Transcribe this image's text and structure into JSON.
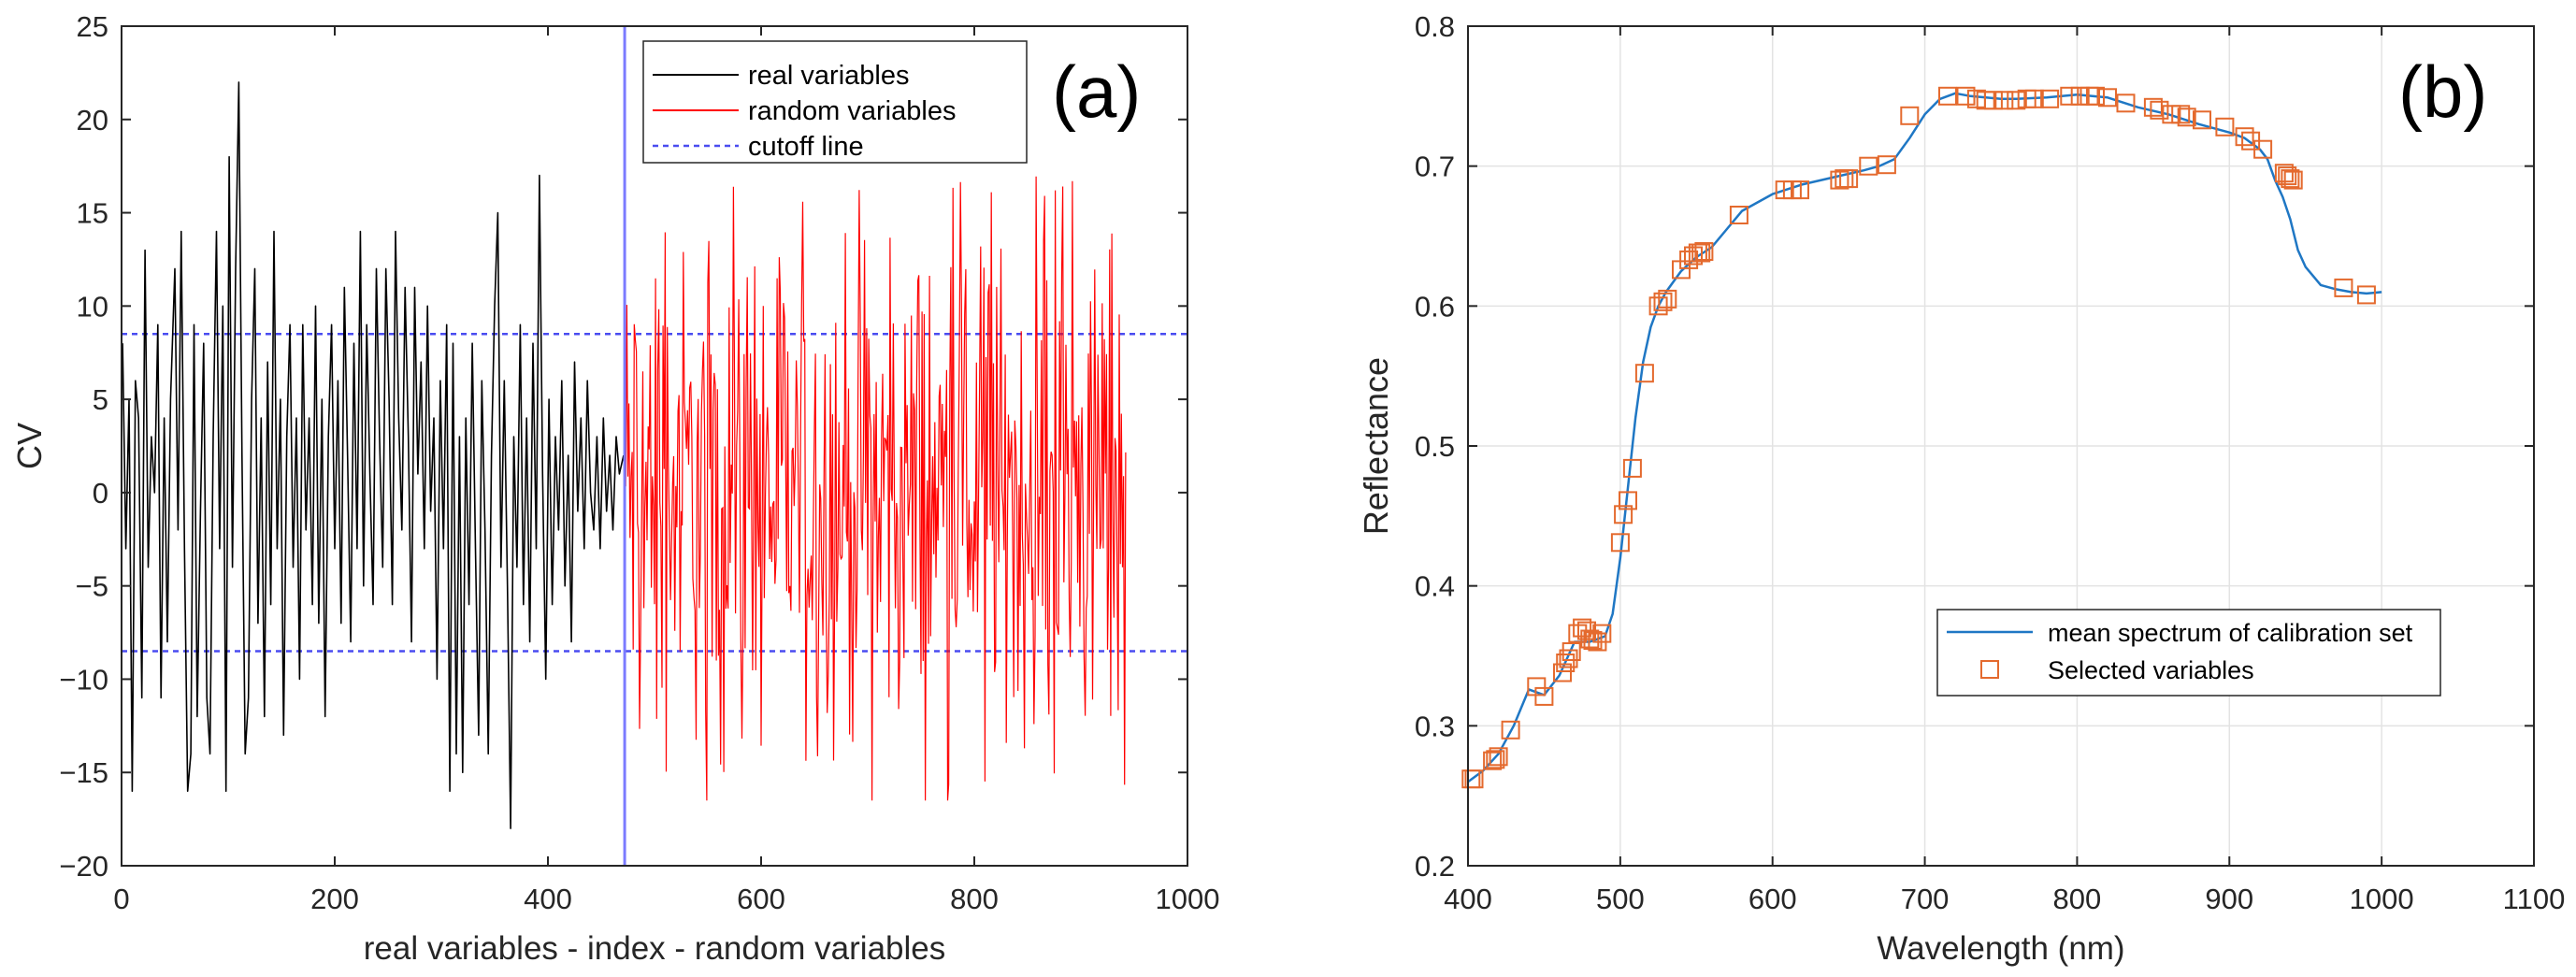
{
  "chart_data": [
    {
      "panel_label": "(a)",
      "type": "line",
      "title": "",
      "xlabel": "real variables - index - random variables",
      "ylabel": "CV",
      "xlim": [
        0,
        1000
      ],
      "ylim": [
        -20,
        25
      ],
      "xticks": [
        0,
        200,
        400,
        600,
        800,
        1000
      ],
      "xtick_labels": [
        "0",
        "200",
        "400",
        "600",
        "800",
        "1000"
      ],
      "yticks": [
        25,
        20,
        15,
        10,
        5,
        0,
        -5,
        -10,
        -15,
        -20
      ],
      "ytick_labels": [
        "25",
        "20",
        "15",
        "10",
        "5",
        "0",
        "−5",
        "−10",
        "−15",
        "−20"
      ],
      "grid": false,
      "legend_position": "top-right",
      "legend": [
        "real variables",
        "random variables",
        "cutoff line"
      ],
      "series": [
        {
          "name": "real variables",
          "color": "#000000",
          "x_range": [
            1,
            471
          ],
          "points": [
            [
              1,
              8
            ],
            [
              4,
              -3
            ],
            [
              7,
              5
            ],
            [
              10,
              -16
            ],
            [
              13,
              6
            ],
            [
              16,
              4
            ],
            [
              19,
              -11
            ],
            [
              22,
              13
            ],
            [
              25,
              -4
            ],
            [
              28,
              3
            ],
            [
              31,
              0
            ],
            [
              34,
              9
            ],
            [
              37,
              -11
            ],
            [
              40,
              4
            ],
            [
              43,
              -8
            ],
            [
              46,
              5
            ],
            [
              50,
              12
            ],
            [
              53,
              -2
            ],
            [
              56,
              14
            ],
            [
              59,
              -3
            ],
            [
              62,
              -16
            ],
            [
              65,
              -14
            ],
            [
              68,
              9
            ],
            [
              71,
              -12
            ],
            [
              74,
              -1
            ],
            [
              77,
              8
            ],
            [
              80,
              -11
            ],
            [
              83,
              -14
            ],
            [
              86,
              3
            ],
            [
              89,
              14
            ],
            [
              92,
              -3
            ],
            [
              95,
              10
            ],
            [
              98,
              -16
            ],
            [
              101,
              18
            ],
            [
              104,
              -4
            ],
            [
              107,
              12
            ],
            [
              110,
              22
            ],
            [
              113,
              2
            ],
            [
              116,
              -14
            ],
            [
              119,
              -11
            ],
            [
              122,
              5
            ],
            [
              125,
              12
            ],
            [
              128,
              -7
            ],
            [
              131,
              4
            ],
            [
              134,
              -12
            ],
            [
              137,
              7
            ],
            [
              140,
              -6
            ],
            [
              143,
              14
            ],
            [
              146,
              -3
            ],
            [
              149,
              5
            ],
            [
              152,
              -13
            ],
            [
              155,
              3
            ],
            [
              158,
              9
            ],
            [
              161,
              -4
            ],
            [
              164,
              4
            ],
            [
              167,
              -10
            ],
            [
              170,
              9
            ],
            [
              173,
              -2
            ],
            [
              176,
              4
            ],
            [
              179,
              -6
            ],
            [
              182,
              10
            ],
            [
              185,
              -7
            ],
            [
              188,
              5
            ],
            [
              191,
              -12
            ],
            [
              194,
              3
            ],
            [
              197,
              9
            ],
            [
              200,
              -3
            ],
            [
              203,
              6
            ],
            [
              206,
              -7
            ],
            [
              209,
              11
            ],
            [
              212,
              2
            ],
            [
              215,
              -8
            ],
            [
              218,
              8
            ],
            [
              221,
              -3
            ],
            [
              224,
              14
            ],
            [
              227,
              -5
            ],
            [
              230,
              9
            ],
            [
              233,
              1
            ],
            [
              236,
              -6
            ],
            [
              239,
              12
            ],
            [
              242,
              3
            ],
            [
              245,
              -4
            ],
            [
              248,
              12
            ],
            [
              251,
              5
            ],
            [
              254,
              -6
            ],
            [
              257,
              14
            ],
            [
              260,
              4
            ],
            [
              263,
              -2
            ],
            [
              266,
              11
            ],
            [
              269,
              3
            ],
            [
              272,
              -8
            ],
            [
              275,
              11
            ],
            [
              278,
              1
            ],
            [
              281,
              7
            ],
            [
              284,
              -3
            ],
            [
              287,
              10
            ],
            [
              290,
              -1
            ],
            [
              293,
              4
            ],
            [
              296,
              -10
            ],
            [
              299,
              6
            ],
            [
              302,
              -3
            ],
            [
              305,
              9
            ],
            [
              308,
              -16
            ],
            [
              311,
              8
            ],
            [
              314,
              -14
            ],
            [
              317,
              3
            ],
            [
              320,
              -15
            ],
            [
              323,
              4
            ],
            [
              326,
              -6
            ],
            [
              329,
              8
            ],
            [
              332,
              -3
            ],
            [
              335,
              -13
            ],
            [
              338,
              6
            ],
            [
              341,
              -2
            ],
            [
              344,
              -14
            ],
            [
              347,
              2
            ],
            [
              350,
              10
            ],
            [
              353,
              15
            ],
            [
              356,
              -4
            ],
            [
              359,
              6
            ],
            [
              362,
              -5
            ],
            [
              365,
              -18
            ],
            [
              368,
              3
            ],
            [
              371,
              -4
            ],
            [
              374,
              9
            ],
            [
              377,
              -6
            ],
            [
              380,
              4
            ],
            [
              383,
              -8
            ],
            [
              386,
              8
            ],
            [
              389,
              -3
            ],
            [
              392,
              17
            ],
            [
              395,
              1
            ],
            [
              398,
              -10
            ],
            [
              401,
              5
            ],
            [
              404,
              -6
            ],
            [
              407,
              3
            ],
            [
              410,
              -2
            ],
            [
              413,
              6
            ],
            [
              416,
              -5
            ],
            [
              419,
              2
            ],
            [
              422,
              -8
            ],
            [
              425,
              7
            ],
            [
              428,
              -1
            ],
            [
              431,
              4
            ],
            [
              434,
              -3
            ],
            [
              437,
              6
            ],
            [
              440,
              0
            ],
            [
              443,
              -2
            ],
            [
              446,
              3
            ],
            [
              449,
              -3
            ],
            [
              452,
              4
            ],
            [
              455,
              -1
            ],
            [
              458,
              2
            ],
            [
              461,
              -2
            ],
            [
              464,
              3
            ],
            [
              467,
              1
            ],
            [
              471,
              2
            ]
          ]
        },
        {
          "name": "random variables",
          "color": "#ff0000",
          "x_range": [
            472,
            942
          ],
          "generation": "dense random noise, amplitude mostly within ±12, peaks ~17",
          "y_min": -16.5,
          "y_max": 17.5
        }
      ],
      "cutoff_lines": {
        "name": "cutoff line",
        "color": "#4a4cf0",
        "style": "dotted",
        "values": [
          8.5,
          -8.5
        ]
      },
      "divider": {
        "x": 472,
        "color": "#7b7bff"
      }
    },
    {
      "panel_label": "(b)",
      "type": "line",
      "title": "",
      "xlabel": "Wavelength (nm)",
      "ylabel": "Reflectance",
      "xlim": [
        400,
        1100
      ],
      "ylim": [
        0.2,
        0.8
      ],
      "xticks": [
        400,
        500,
        600,
        700,
        800,
        900,
        1000,
        1100
      ],
      "xtick_labels": [
        "400",
        "500",
        "600",
        "700",
        "800",
        "900",
        "1000",
        "1100"
      ],
      "yticks": [
        0.2,
        0.3,
        0.4,
        0.5,
        0.6,
        0.7,
        0.8
      ],
      "ytick_labels": [
        "0.2",
        "0.3",
        "0.4",
        "0.5",
        "0.6",
        "0.7",
        "0.8"
      ],
      "grid": true,
      "legend_position": "lower-right",
      "legend": [
        "mean spectrum of calibration set",
        "Selected variables"
      ],
      "series": [
        {
          "name": "mean spectrum of calibration set",
          "color": "#1f77c4",
          "x": [
            400,
            410,
            420,
            430,
            440,
            450,
            460,
            470,
            480,
            490,
            495,
            500,
            505,
            510,
            515,
            520,
            525,
            530,
            540,
            550,
            560,
            570,
            580,
            600,
            620,
            640,
            660,
            670,
            680,
            690,
            700,
            710,
            720,
            730,
            740,
            750,
            760,
            780,
            800,
            820,
            840,
            860,
            880,
            900,
            910,
            920,
            925,
            930,
            935,
            940,
            945,
            950,
            960,
            970,
            980,
            990,
            1000
          ],
          "y": [
            0.26,
            0.268,
            0.28,
            0.3,
            0.326,
            0.322,
            0.336,
            0.36,
            0.36,
            0.364,
            0.38,
            0.42,
            0.47,
            0.52,
            0.56,
            0.585,
            0.6,
            0.61,
            0.625,
            0.635,
            0.642,
            0.655,
            0.668,
            0.68,
            0.687,
            0.692,
            0.697,
            0.7,
            0.705,
            0.72,
            0.737,
            0.748,
            0.752,
            0.75,
            0.749,
            0.748,
            0.748,
            0.749,
            0.751,
            0.749,
            0.742,
            0.737,
            0.73,
            0.724,
            0.72,
            0.712,
            0.705,
            0.69,
            0.678,
            0.662,
            0.64,
            0.628,
            0.615,
            0.612,
            0.61,
            0.609,
            0.61
          ]
        },
        {
          "name": "Selected variables",
          "color": "#e46a2e",
          "marker": "square",
          "x": [
            402,
            404,
            416,
            418,
            420,
            428,
            445,
            450,
            462,
            464,
            466,
            468,
            472,
            475,
            478,
            480,
            482,
            485,
            488,
            500,
            502,
            505,
            508,
            516,
            525,
            528,
            531,
            540,
            545,
            548,
            551,
            553,
            555,
            578,
            608,
            613,
            618,
            644,
            647,
            650,
            663,
            675,
            690,
            715,
            727,
            734,
            740,
            745,
            752,
            760,
            767,
            772,
            782,
            795,
            802,
            808,
            812,
            820,
            832,
            850,
            854,
            862,
            868,
            872,
            882,
            897,
            910,
            914,
            922,
            936,
            938,
            940,
            942,
            975,
            990
          ],
          "y": [
            0.262,
            0.262,
            0.275,
            0.276,
            0.278,
            0.297,
            0.328,
            0.321,
            0.338,
            0.345,
            0.348,
            0.353,
            0.366,
            0.37,
            0.368,
            0.362,
            0.361,
            0.36,
            0.366,
            0.431,
            0.451,
            0.461,
            0.484,
            0.552,
            0.6,
            0.603,
            0.605,
            0.626,
            0.633,
            0.636,
            0.638,
            0.638,
            0.639,
            0.665,
            0.683,
            0.683,
            0.683,
            0.69,
            0.691,
            0.691,
            0.7,
            0.701,
            0.736,
            0.75,
            0.75,
            0.748,
            0.747,
            0.747,
            0.747,
            0.747,
            0.748,
            0.748,
            0.748,
            0.75,
            0.75,
            0.75,
            0.75,
            0.749,
            0.745,
            0.742,
            0.74,
            0.737,
            0.737,
            0.735,
            0.733,
            0.728,
            0.721,
            0.718,
            0.712,
            0.695,
            0.693,
            0.691,
            0.69,
            0.613,
            0.608
          ]
        }
      ]
    }
  ]
}
